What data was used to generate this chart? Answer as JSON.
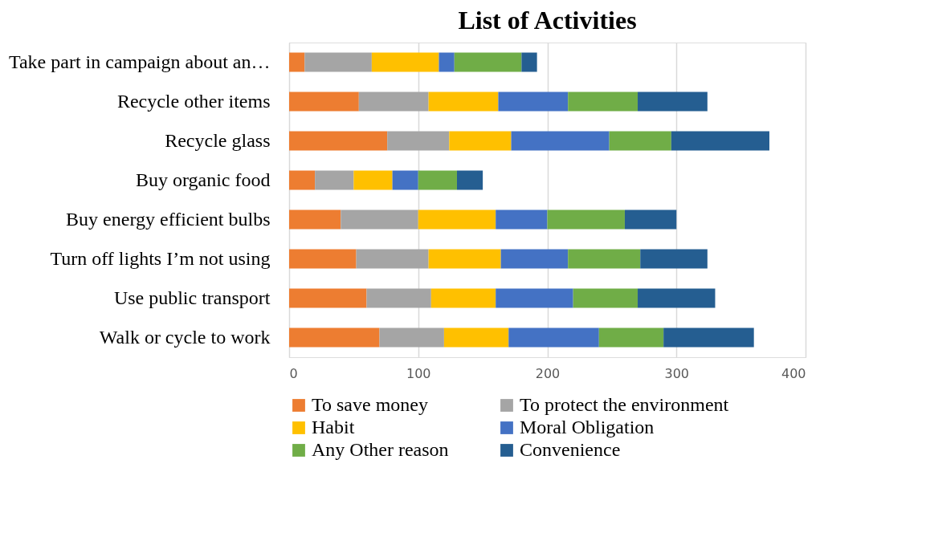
{
  "chart_data": {
    "type": "bar",
    "orientation": "horizontal",
    "stacked": true,
    "title": "List of Activities",
    "categories": [
      "Take part in campaign about an…",
      "Recycle other items",
      "Recycle glass",
      "Buy organic food",
      "Buy energy efficient bulbs",
      "Turn off lights I’m not using",
      "Use public transport",
      "Walk or cycle to work"
    ],
    "series": [
      {
        "name": "To save money",
        "color": "#ed7d31",
        "values": [
          12,
          54,
          76,
          20,
          40,
          52,
          60,
          70
        ]
      },
      {
        "name": "To protect the environment",
        "color": "#a5a5a5",
        "values": [
          52,
          54,
          48,
          30,
          60,
          56,
          50,
          50
        ]
      },
      {
        "name": "Habit",
        "color": "#ffc000",
        "values": [
          52,
          54,
          48,
          30,
          60,
          56,
          50,
          50
        ]
      },
      {
        "name": "Moral Obligation",
        "color": "#4472c4",
        "values": [
          12,
          54,
          76,
          20,
          40,
          52,
          60,
          70
        ]
      },
      {
        "name": "Any Other reason",
        "color": "#70ad47",
        "values": [
          52,
          54,
          48,
          30,
          60,
          56,
          50,
          50
        ]
      },
      {
        "name": "Convenience",
        "color": "#255e91",
        "values": [
          12,
          54,
          76,
          20,
          40,
          52,
          60,
          70
        ]
      }
    ],
    "xlim": [
      0,
      400
    ],
    "xticks": [
      0,
      100,
      200,
      300,
      400
    ],
    "grid": "x",
    "legend": "bottom"
  }
}
